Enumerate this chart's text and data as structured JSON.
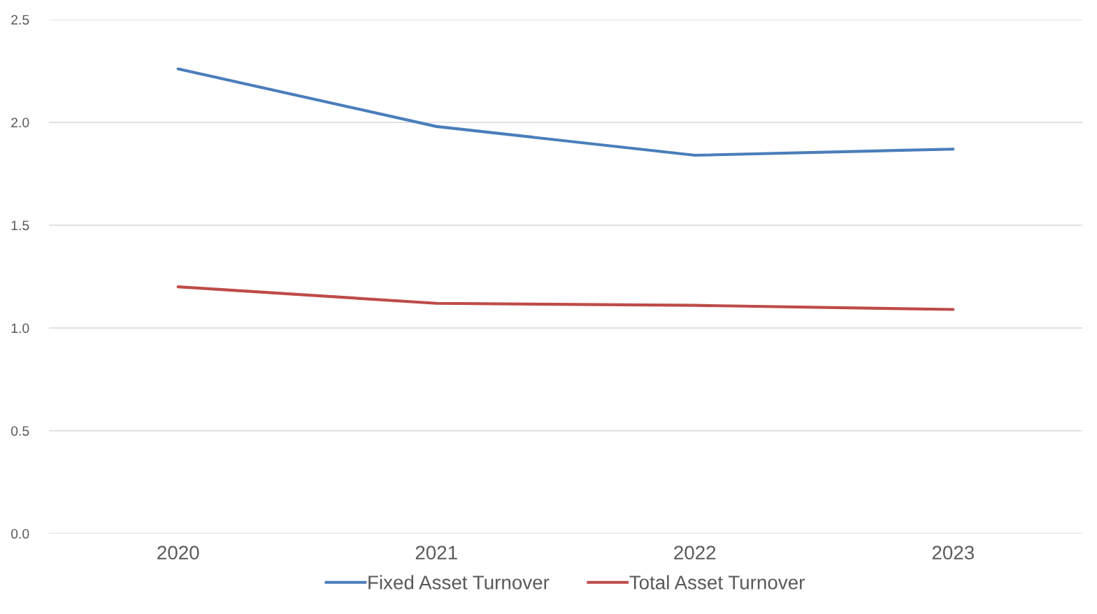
{
  "chart_data": {
    "type": "line",
    "categories": [
      "2020",
      "2021",
      "2022",
      "2023"
    ],
    "series": [
      {
        "name": "Fixed Asset Turnover",
        "color": "#4a7ebb",
        "values": [
          2.26,
          1.98,
          1.84,
          1.87
        ]
      },
      {
        "name": "Total Asset Turnover",
        "color": "#be4b48",
        "values": [
          1.2,
          1.12,
          1.11,
          1.09
        ]
      }
    ],
    "ylim": [
      0,
      2.5
    ],
    "yticks": [
      {
        "value": 0,
        "label": "0.0"
      },
      {
        "value": 0.5,
        "label": "0.5"
      },
      {
        "value": 1,
        "label": "1.0"
      },
      {
        "value": 1.5,
        "label": "1.5"
      },
      {
        "value": 2,
        "label": "2.0"
      },
      {
        "value": 2.5,
        "label": "2.5"
      }
    ],
    "grid": "y",
    "legend": "bottom",
    "marker": "none",
    "line_style": "solid"
  }
}
